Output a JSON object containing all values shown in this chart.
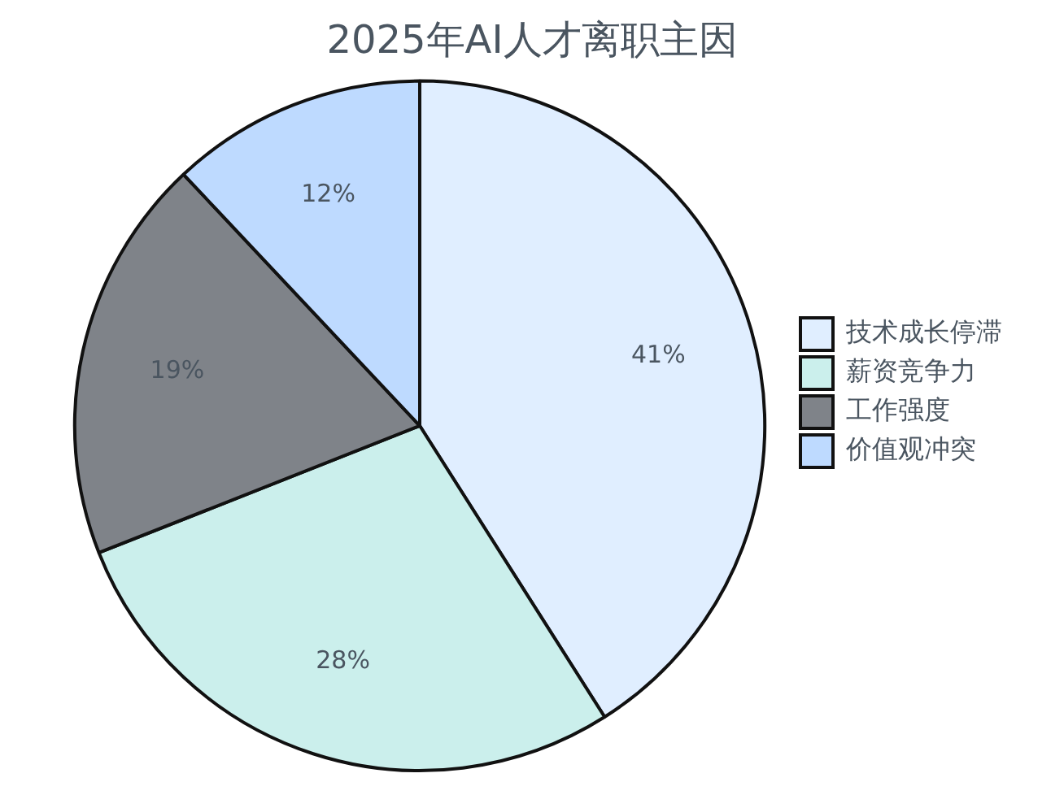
{
  "chart_data": {
    "type": "pie",
    "title": "2025年AI人才离职主因",
    "categories": [
      "技术成长停滞",
      "薪资竞争力",
      "工作强度",
      "价值观冲突"
    ],
    "values": [
      41,
      28,
      19,
      12
    ],
    "colors": [
      "#e0eeff",
      "#cbefec",
      "#7f8389",
      "#bedaff"
    ],
    "value_labels": [
      "41%",
      "28%",
      "19%",
      "12%"
    ],
    "legend": "right"
  }
}
